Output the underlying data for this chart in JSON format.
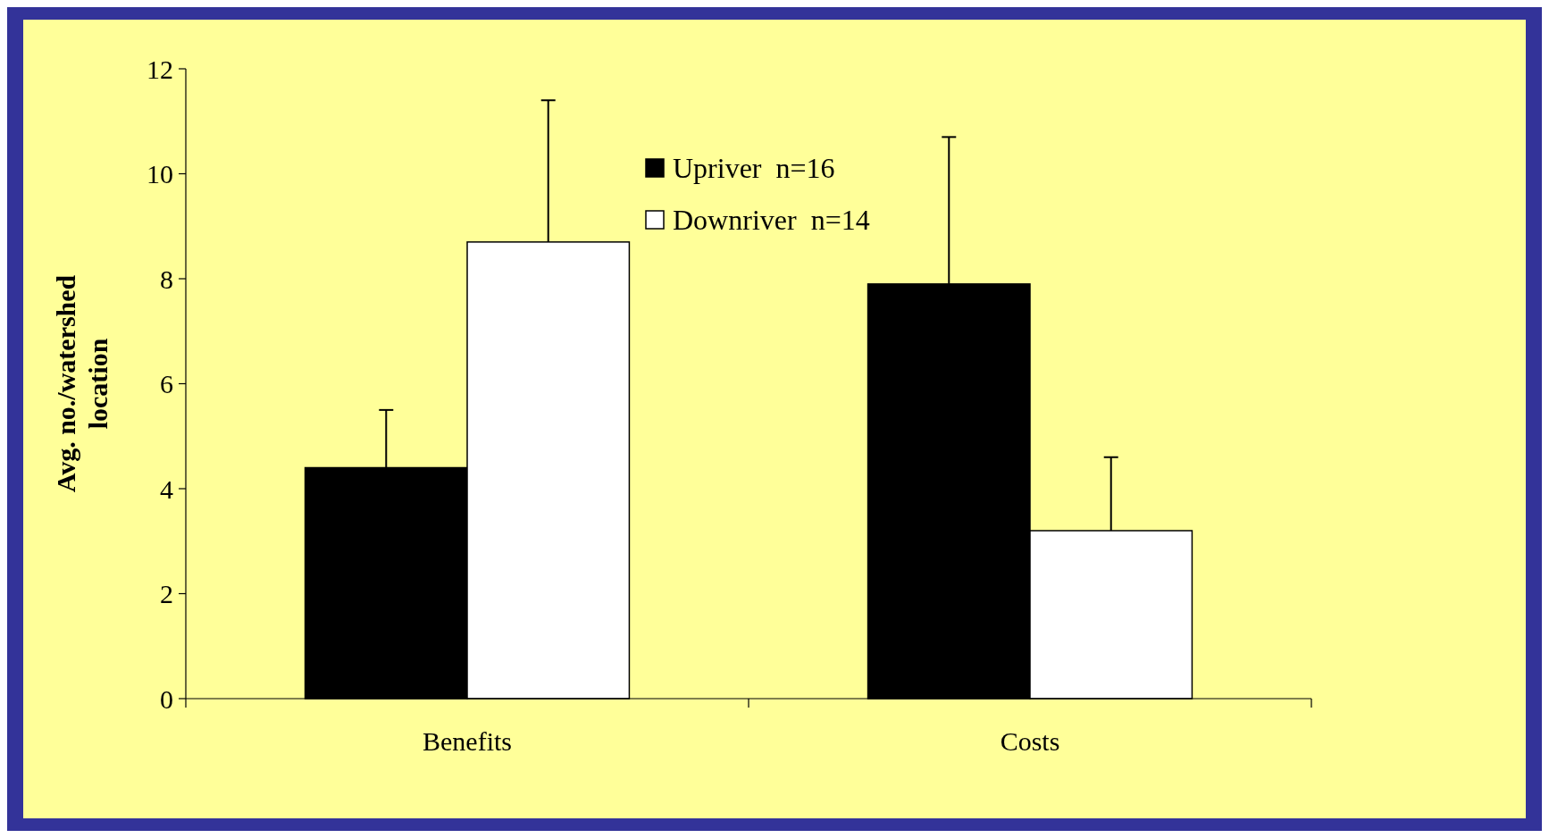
{
  "chart_data": {
    "type": "bar",
    "ylabel": "Avg. no./watershed location",
    "categories": [
      "Benefits",
      "Costs"
    ],
    "series": [
      {
        "name": "Upriver  n=16",
        "color": "#000000",
        "values": [
          4.4,
          7.9
        ],
        "errors": [
          [
            4.4,
            5.5
          ],
          [
            7.9,
            10.7
          ]
        ]
      },
      {
        "name": "Downriver  n=14",
        "color": "#ffffff",
        "values": [
          8.7,
          3.2
        ],
        "errors": [
          [
            8.7,
            11.4
          ],
          [
            3.2,
            4.6
          ]
        ]
      }
    ],
    "ylim": [
      0,
      12
    ],
    "yticks": [
      0,
      2,
      4,
      6,
      8,
      10,
      12
    ],
    "grid": false,
    "legend": "top"
  }
}
